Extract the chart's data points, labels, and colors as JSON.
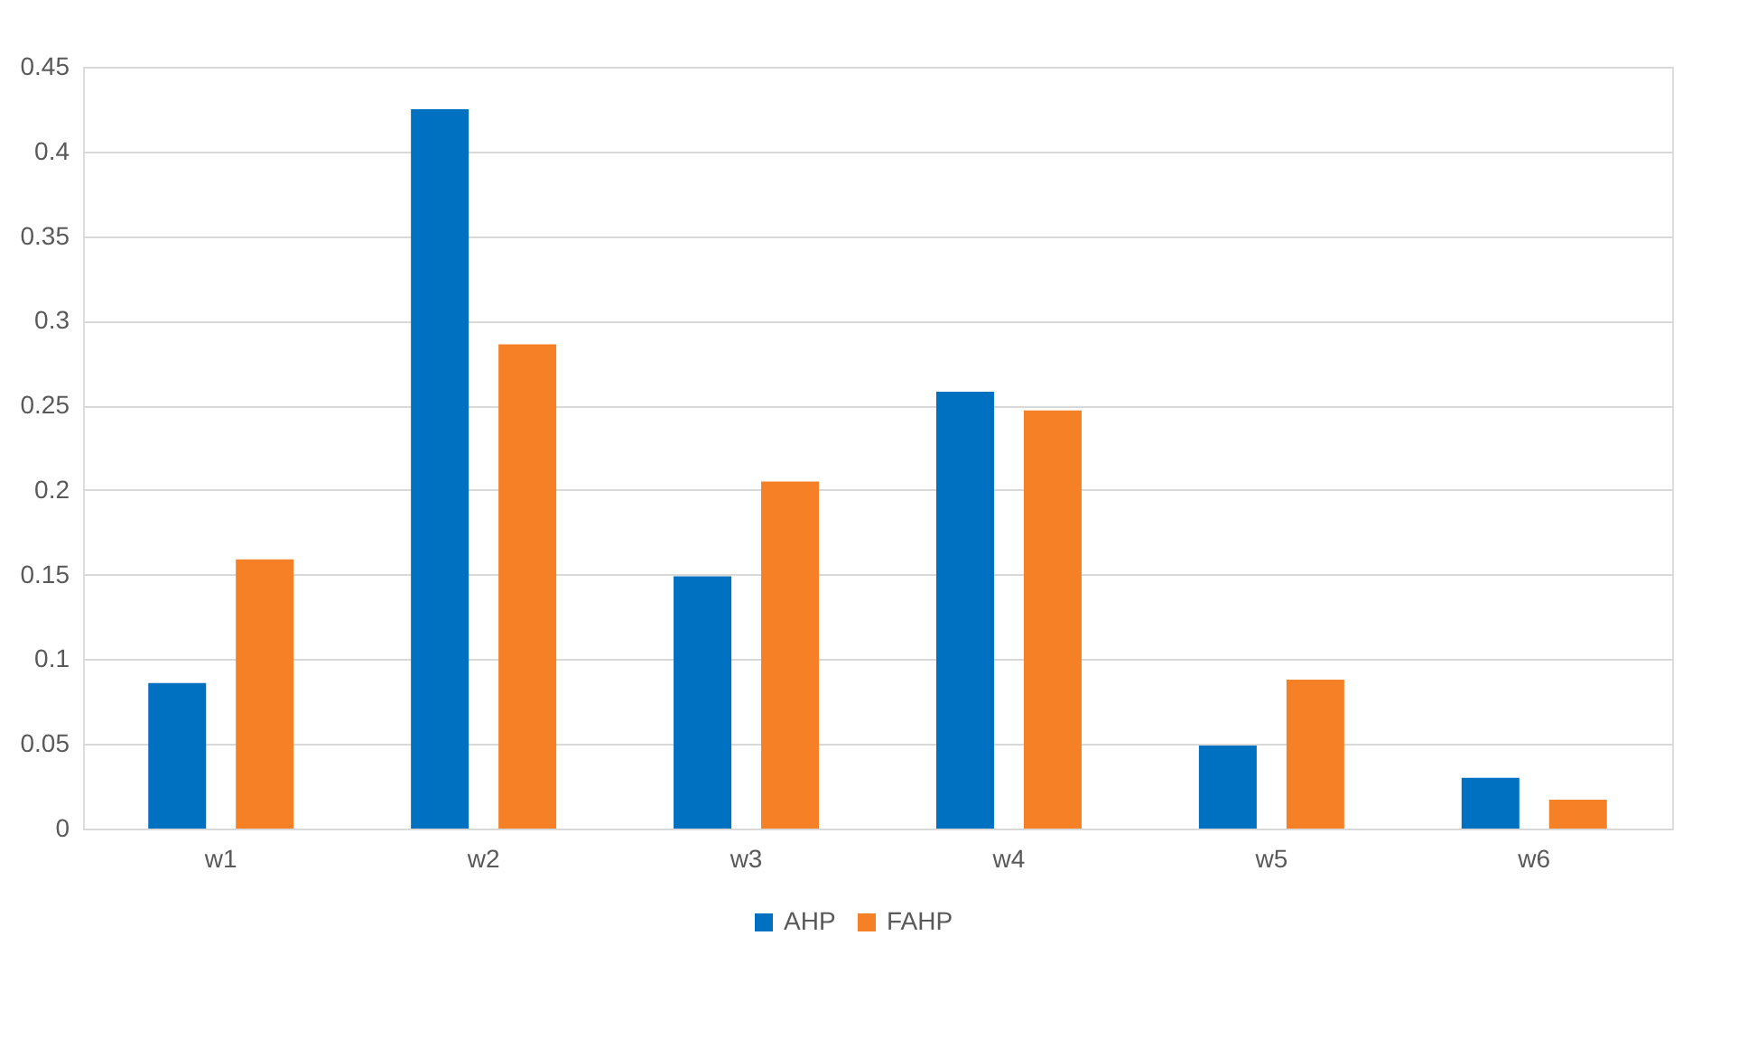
{
  "chart_data": {
    "type": "bar",
    "categories": [
      "w1",
      "w2",
      "w3",
      "w4",
      "w5",
      "w6"
    ],
    "series": [
      {
        "name": "AHP",
        "color": "#0070c0",
        "values": [
          0.086,
          0.425,
          0.149,
          0.258,
          0.049,
          0.03
        ]
      },
      {
        "name": "FAHP",
        "color": "#f58025",
        "values": [
          0.159,
          0.286,
          0.205,
          0.247,
          0.088,
          0.017
        ]
      }
    ],
    "ylim": [
      0,
      0.45
    ],
    "yticks": [
      0,
      0.05,
      0.1,
      0.15,
      0.2,
      0.25,
      0.3,
      0.35,
      0.4,
      0.45
    ],
    "grid": "y",
    "legend": "bottom"
  }
}
